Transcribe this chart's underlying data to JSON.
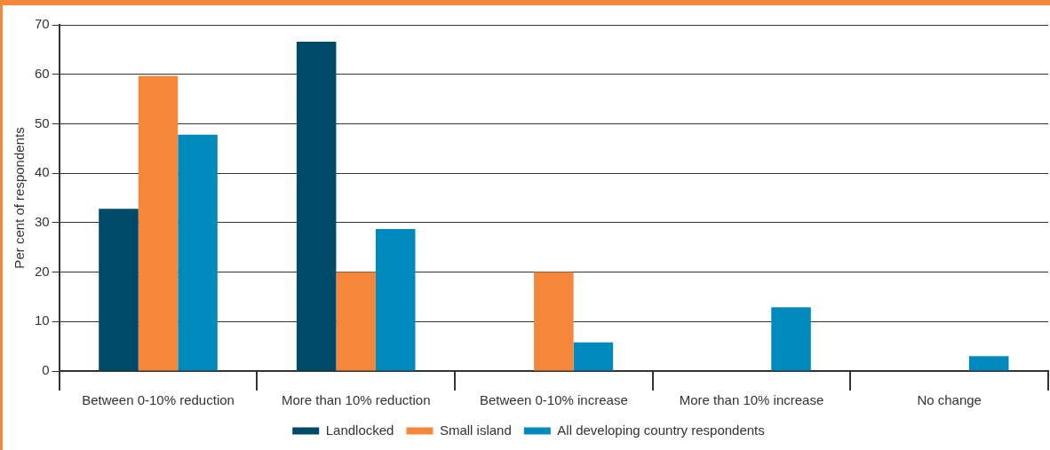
{
  "chart_data": {
    "type": "bar",
    "ylabel": "Per cent of respondents",
    "categories": [
      "Between 0-10% reduction",
      "More than 10% reduction",
      "Between 0-10% increase",
      "More than 10% increase",
      "No change"
    ],
    "series": [
      {
        "name": "Landlocked",
        "color": "#004a69",
        "values": [
          32.8,
          66.6,
          0,
          0,
          0
        ]
      },
      {
        "name": "Small island",
        "color": "#f5873a",
        "values": [
          59.7,
          20,
          20,
          0,
          0
        ]
      },
      {
        "name": "All developing country respondents",
        "color": "#0089bd",
        "values": [
          47.8,
          28.7,
          5.8,
          12.9,
          3
        ]
      }
    ],
    "ylim": [
      0,
      70
    ],
    "yticks": [
      0,
      10,
      20,
      30,
      40,
      50,
      60,
      70
    ],
    "grid": "y",
    "legend": "bottom"
  }
}
